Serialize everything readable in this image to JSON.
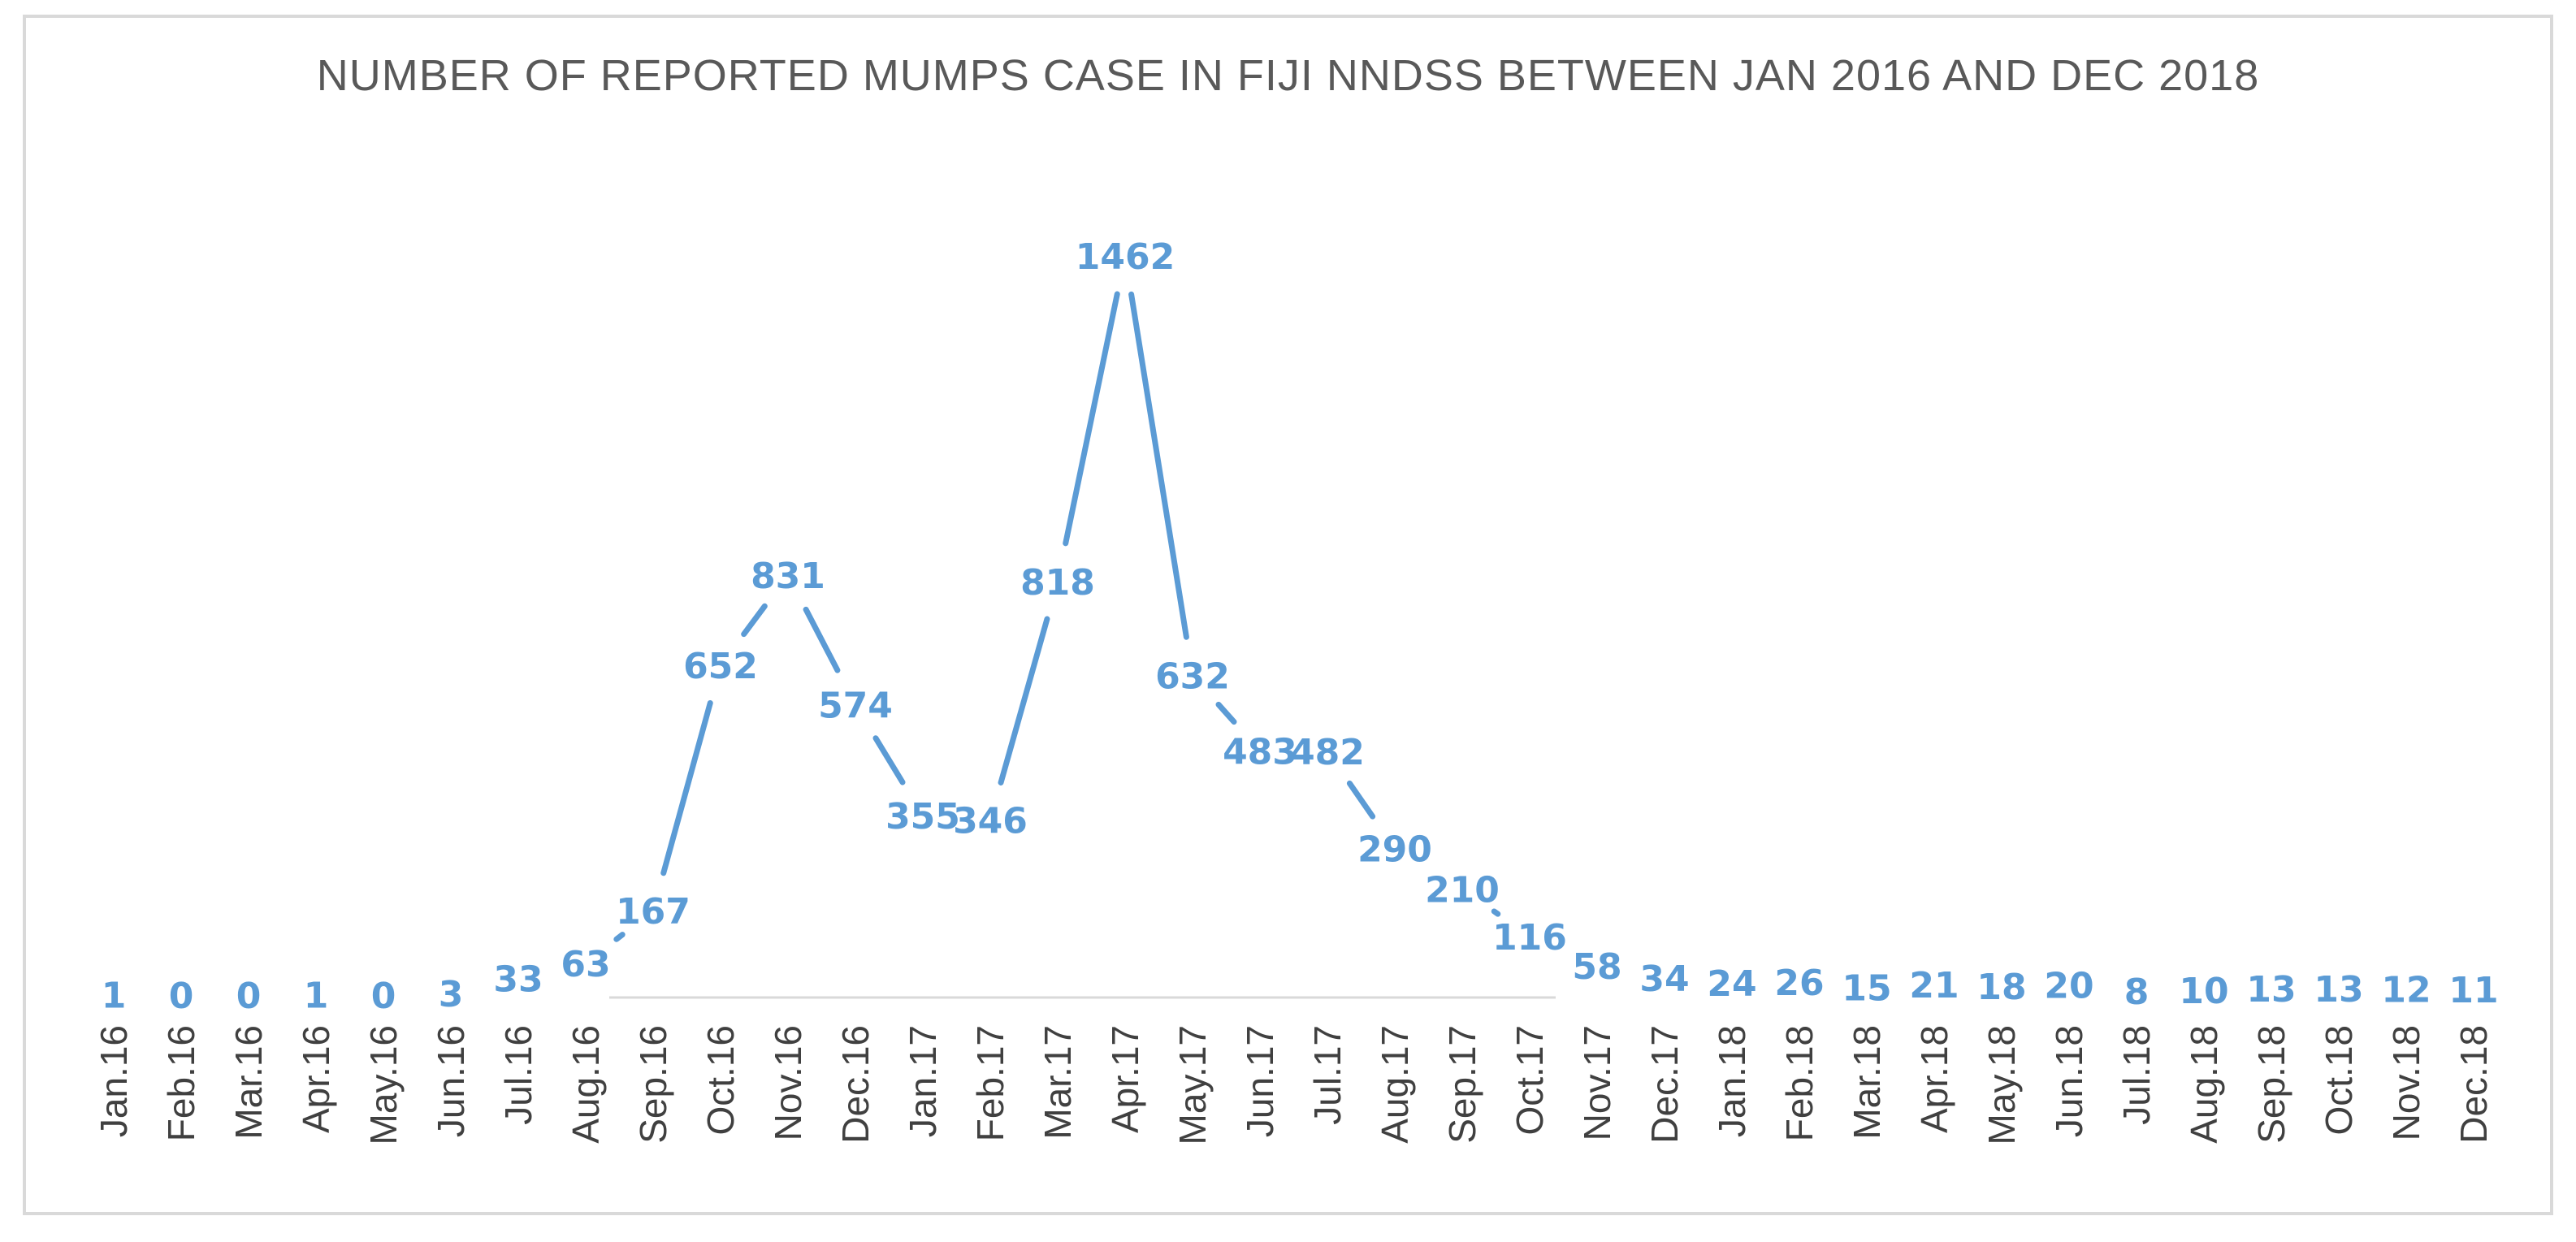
{
  "colors": {
    "line": "#5b9bd5",
    "label": "#5b9bd5",
    "axis": "#d9d9d9",
    "text": "#404040",
    "title": "#595959"
  },
  "chart_data": {
    "type": "line",
    "title": "NUMBER OF REPORTED MUMPS CASE IN FIJI NNDSS BETWEEN JAN 2016 AND DEC 2018",
    "xlabel": "",
    "ylabel": "",
    "grid": false,
    "legend": "none",
    "categories": [
      "Jan.16",
      "Feb.16",
      "Mar.16",
      "Apr.16",
      "May.16",
      "Jun.16",
      "Jul.16",
      "Aug.16",
      "Sep.16",
      "Oct.16",
      "Nov.16",
      "Dec.16",
      "Jan.17",
      "Feb.17",
      "Mar.17",
      "Apr.17",
      "May.17",
      "Jun.17",
      "Jul.17",
      "Aug.17",
      "Sep.17",
      "Oct.17",
      "Nov.17",
      "Dec.17",
      "Jan.18",
      "Feb.18",
      "Mar.18",
      "Apr.18",
      "May.18",
      "Jun.18",
      "Jul.18",
      "Aug.18",
      "Sep.18",
      "Oct.18",
      "Nov.18",
      "Dec.18"
    ],
    "series": [
      {
        "values": [
          1,
          0,
          0,
          1,
          0,
          3,
          33,
          63,
          167,
          652,
          831,
          574,
          355,
          346,
          818,
          1462,
          632,
          483,
          482,
          290,
          210,
          116,
          58,
          34,
          24,
          26,
          15,
          21,
          18,
          20,
          8,
          10,
          13,
          13,
          12,
          11
        ]
      }
    ],
    "ylim": [
      0,
      1600
    ]
  }
}
